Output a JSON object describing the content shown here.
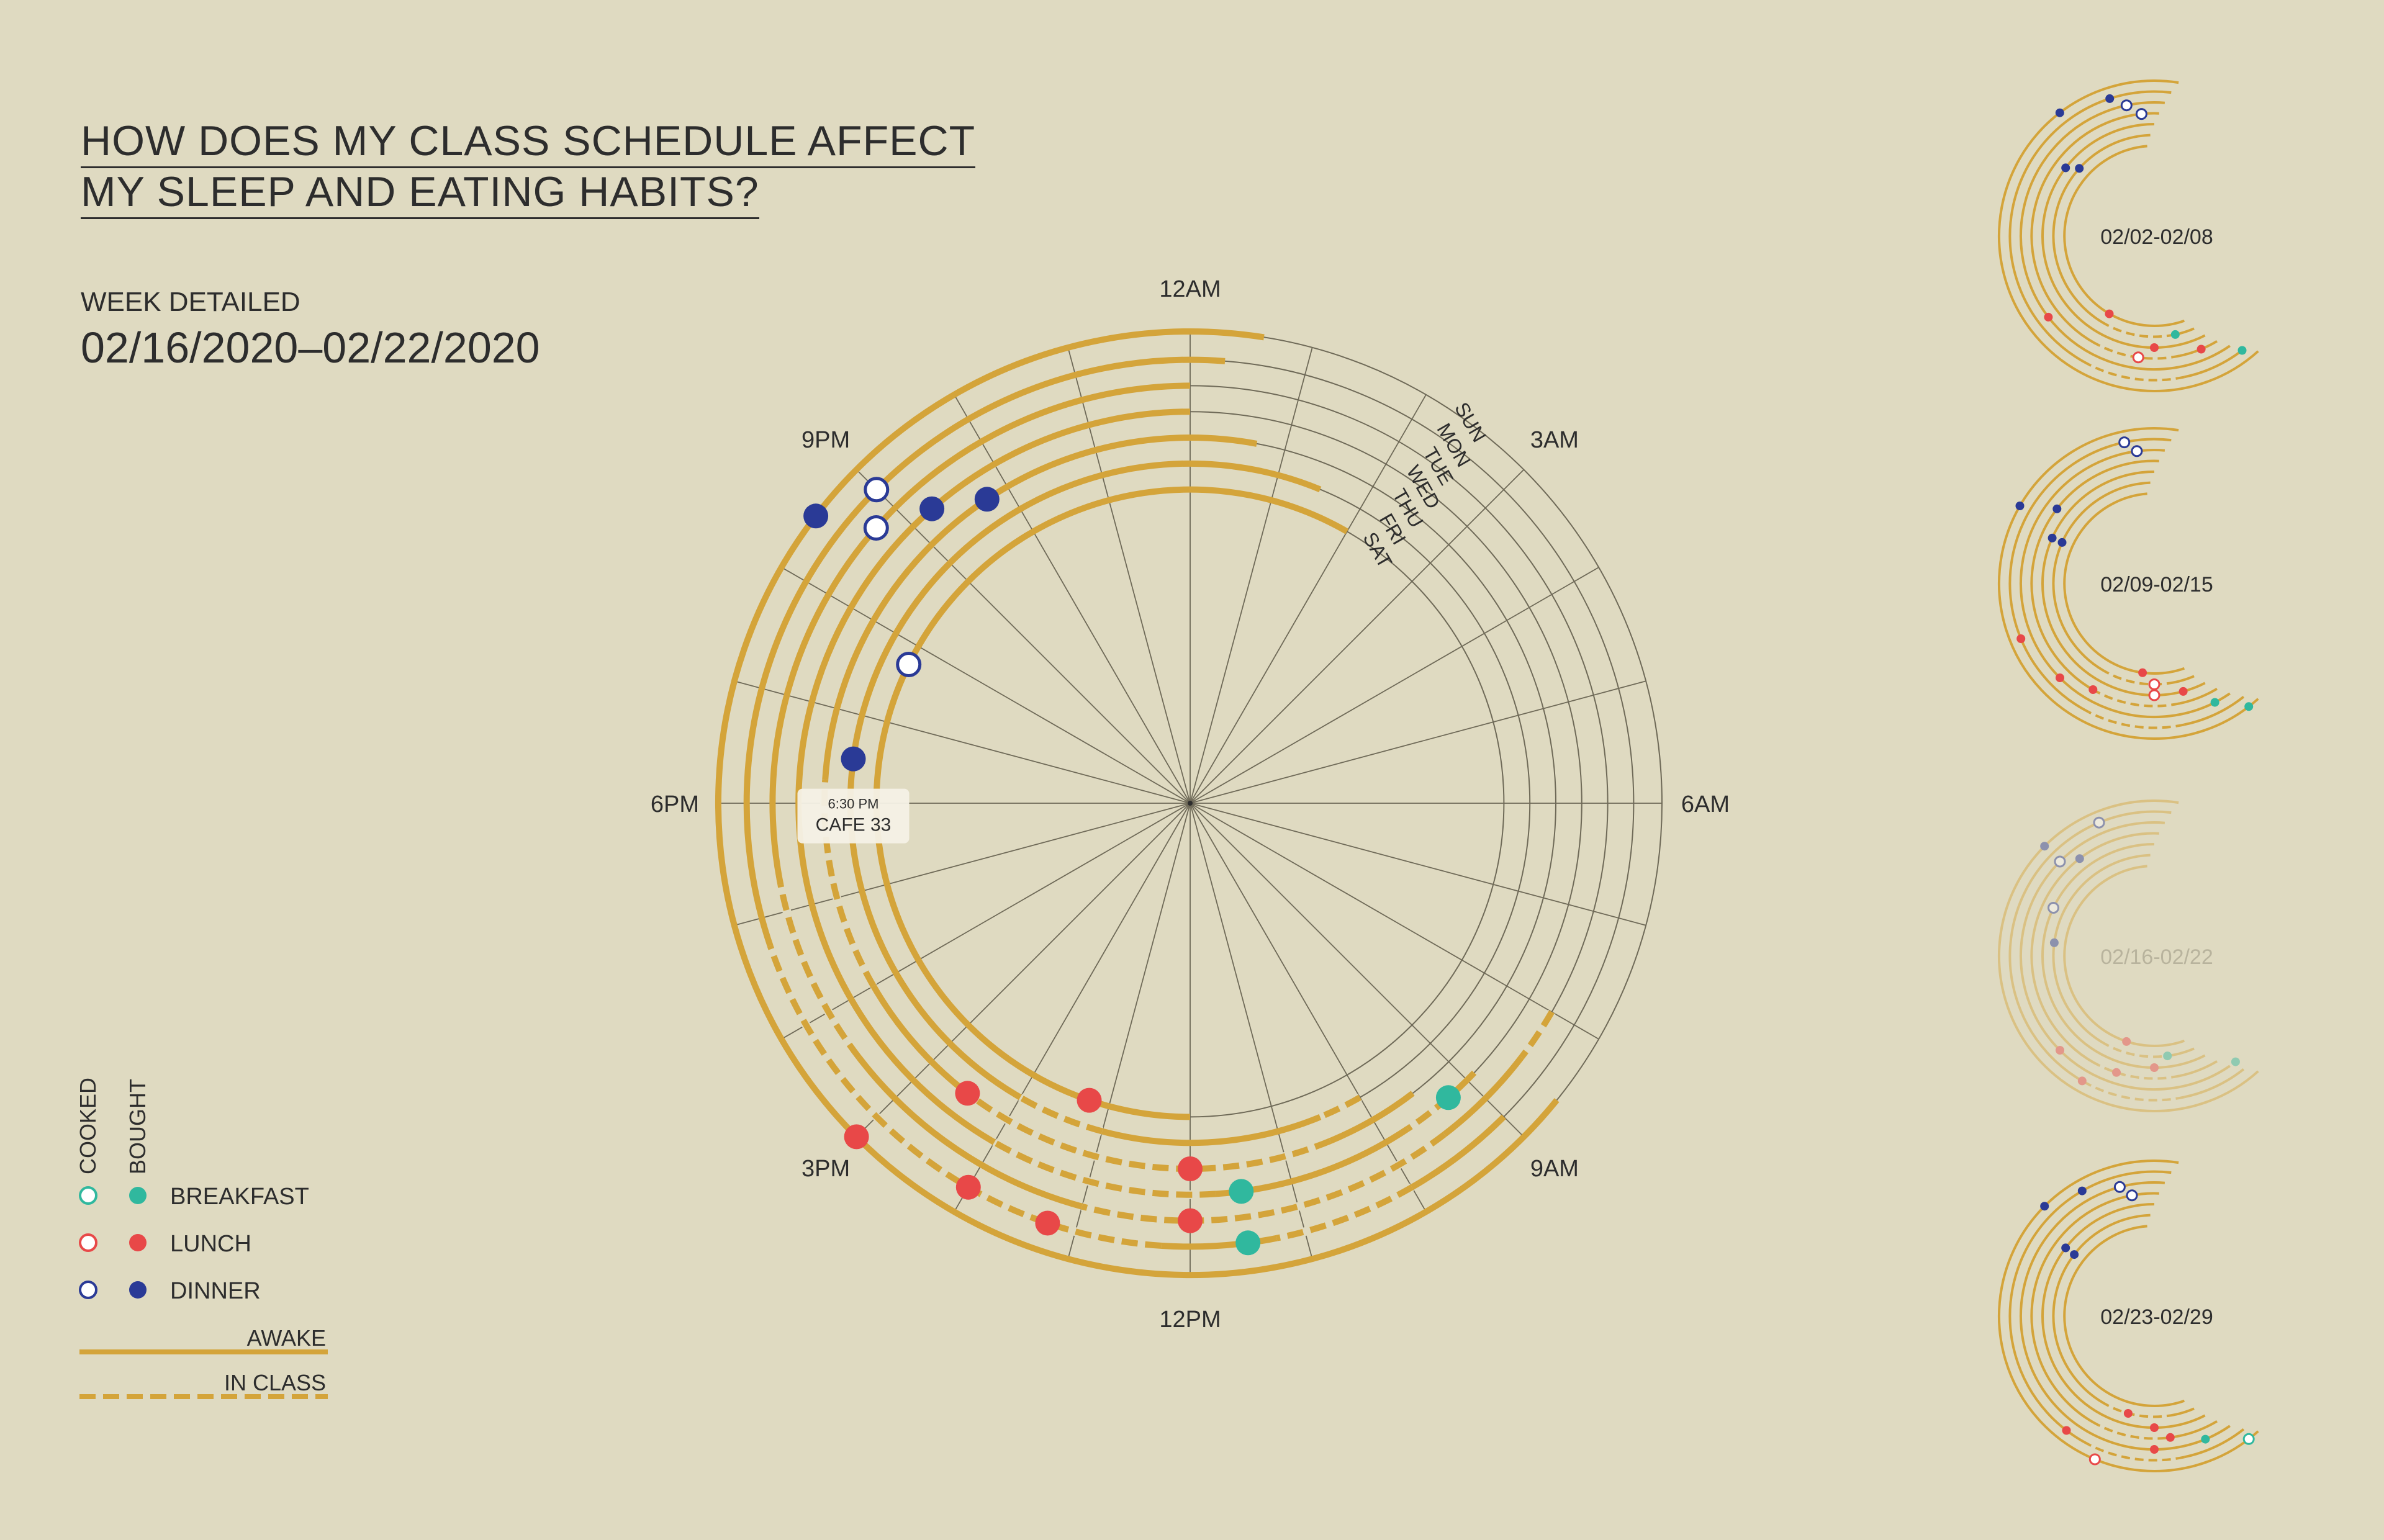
{
  "title": {
    "line1": "HOW DOES MY CLASS SCHEDULE AFFECT",
    "line2": "MY SLEEP AND EATING HABITS?"
  },
  "week": {
    "label": "WEEK DETAILED",
    "range": "02/16/2020–02/22/2020"
  },
  "colors": {
    "background": "#dfdac1",
    "awake": "#d4a43a",
    "breakfast": "#30b89e",
    "lunch": "#e84848",
    "dinner": "#2a3a96",
    "grid": "#6f6a58"
  },
  "legend": {
    "col_cooked": "COOKED",
    "col_bought": "BOUGHT",
    "meals": [
      {
        "key": "breakfast",
        "label": "BREAKFAST"
      },
      {
        "key": "lunch",
        "label": "LUNCH"
      },
      {
        "key": "dinner",
        "label": "DINNER"
      }
    ],
    "awake": "AWAKE",
    "in_class": "IN CLASS"
  },
  "chart_data": [
    {
      "type": "radial",
      "hour_labels": [
        {
          "hour": 0,
          "label": "12AM"
        },
        {
          "hour": 3,
          "label": "3AM"
        },
        {
          "hour": 6,
          "label": "6AM"
        },
        {
          "hour": 9,
          "label": "9AM"
        },
        {
          "hour": 12,
          "label": "12PM"
        },
        {
          "hour": 15,
          "label": "3PM"
        },
        {
          "hour": 18,
          "label": "6PM"
        },
        {
          "hour": 21,
          "label": "9PM"
        }
      ],
      "days": [
        {
          "day": "SUN",
          "awake": [
            [
              8.6,
              24.6
            ]
          ],
          "in_class": [],
          "meals": [
            {
              "meal": "lunch",
              "type": "bought",
              "hour": 15.0
            },
            {
              "meal": "dinner",
              "type": "bought",
              "hour": 20.5
            }
          ]
        },
        {
          "day": "MON",
          "awake": [
            [
              9.0,
              24.3
            ]
          ],
          "in_class": [
            [
              10.0,
              11.25
            ],
            [
              12.25,
              16.75
            ]
          ],
          "meals": [
            {
              "meal": "breakfast",
              "type": "bought",
              "hour": 11.5
            },
            {
              "meal": "lunch",
              "type": "bought",
              "hour": 13.25
            },
            {
              "meal": "lunch",
              "type": "bought",
              "hour": 14.0
            },
            {
              "meal": "dinner",
              "type": "cooked",
              "hour": 21.0
            }
          ]
        },
        {
          "day": "TUE",
          "awake": [
            [
              8.0,
              24.0
            ]
          ],
          "in_class": [
            [
              8.0,
              8.5
            ],
            [
              9.5,
              13.0
            ],
            [
              15.5,
              17.25
            ]
          ],
          "meals": [
            {
              "meal": "lunch",
              "type": "bought",
              "hour": 12.0
            },
            {
              "meal": "dinner",
              "type": "cooked",
              "hour": 20.75
            }
          ]
        },
        {
          "day": "WED",
          "awake": [
            [
              8.9,
              24.0
            ]
          ],
          "in_class": [
            [
              9.25,
              9.75
            ],
            [
              11.75,
              14.0
            ]
          ],
          "meals": [
            {
              "meal": "breakfast",
              "type": "bought",
              "hour": 9.25
            },
            {
              "meal": "breakfast",
              "type": "bought",
              "hour": 11.5
            },
            {
              "meal": "dinner",
              "type": "bought",
              "hour": 21.25
            }
          ]
        },
        {
          "day": "THU",
          "awake": [
            [
              9.5,
              24.7
            ]
          ],
          "in_class": [
            [
              10.5,
              14.5
            ],
            [
              16.0,
              18.25
            ]
          ],
          "meals": [
            {
              "meal": "lunch",
              "type": "bought",
              "hour": 12.0
            },
            {
              "meal": "lunch",
              "type": "bought",
              "hour": 14.5
            },
            {
              "meal": "dinner",
              "type": "bought",
              "hour": 21.75
            }
          ]
        },
        {
          "day": "FRI",
          "awake": [
            [
              10.0,
              25.5
            ]
          ],
          "in_class": [
            [
              10.0,
              10.5
            ],
            [
              13.0,
              14.0
            ]
          ],
          "meals": [
            {
              "meal": "dinner",
              "type": "bought",
              "hour": 18.5,
              "tooltip_time": "6:30 PM",
              "tooltip_place": "CAFE 33"
            }
          ]
        },
        {
          "day": "SAT",
          "awake": [
            [
              12.0,
              26.0
            ]
          ],
          "in_class": [],
          "meals": [
            {
              "meal": "lunch",
              "type": "bought",
              "hour": 13.25
            },
            {
              "meal": "dinner",
              "type": "cooked",
              "hour": 19.75
            }
          ]
        }
      ]
    },
    {
      "type": "radial",
      "label": "02/02-02/08"
    },
    {
      "type": "radial",
      "label": "02/09-02/15"
    },
    {
      "type": "radial",
      "label": "02/16-02/22"
    },
    {
      "type": "radial",
      "label": "02/23-02/29"
    }
  ]
}
